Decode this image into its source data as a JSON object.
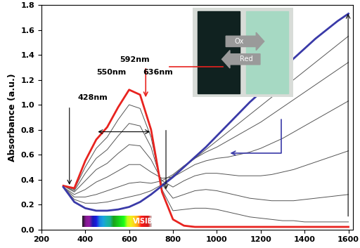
{
  "chart_data": {
    "type": "line",
    "y_label": "Absorbance (a.u.)",
    "x": [
      300,
      350,
      400,
      450,
      500,
      550,
      600,
      650,
      700,
      750,
      800,
      850,
      900,
      950,
      1000,
      1050,
      1100,
      1150,
      1200,
      1250,
      1300,
      1350,
      1400,
      1450,
      1500,
      1550,
      1600
    ],
    "series": [
      {
        "color": "#e8231f",
        "values": [
          0.35,
          0.33,
          0.55,
          0.72,
          0.82,
          0.98,
          1.12,
          1.08,
          0.8,
          0.3,
          0.08,
          0.03,
          0.02,
          0.02,
          0.02,
          0.02,
          0.02,
          0.02,
          0.02,
          0.02,
          0.02,
          0.02,
          0.02,
          0.02,
          0.02,
          0.02,
          0.02
        ]
      },
      {
        "color": "#555555",
        "values": [
          0.35,
          0.32,
          0.5,
          0.65,
          0.74,
          0.88,
          1.0,
          0.97,
          0.74,
          0.32,
          0.15,
          0.16,
          0.17,
          0.17,
          0.16,
          0.14,
          0.12,
          0.1,
          0.09,
          0.08,
          0.07,
          0.07,
          0.06,
          0.06,
          0.06,
          0.06,
          0.06
        ]
      },
      {
        "color": "#555555",
        "values": [
          0.35,
          0.31,
          0.45,
          0.57,
          0.64,
          0.75,
          0.85,
          0.83,
          0.66,
          0.36,
          0.25,
          0.28,
          0.31,
          0.32,
          0.31,
          0.29,
          0.27,
          0.25,
          0.24,
          0.23,
          0.23,
          0.23,
          0.24,
          0.25,
          0.26,
          0.27,
          0.28
        ]
      },
      {
        "color": "#555555",
        "values": [
          0.35,
          0.3,
          0.39,
          0.48,
          0.53,
          0.61,
          0.68,
          0.67,
          0.56,
          0.39,
          0.34,
          0.39,
          0.43,
          0.45,
          0.45,
          0.44,
          0.43,
          0.43,
          0.43,
          0.44,
          0.46,
          0.48,
          0.51,
          0.54,
          0.57,
          0.6,
          0.63
        ]
      },
      {
        "color": "#555555",
        "values": [
          0.34,
          0.28,
          0.32,
          0.38,
          0.42,
          0.47,
          0.52,
          0.52,
          0.46,
          0.41,
          0.42,
          0.47,
          0.52,
          0.55,
          0.57,
          0.58,
          0.6,
          0.62,
          0.65,
          0.69,
          0.73,
          0.78,
          0.83,
          0.88,
          0.93,
          0.98,
          1.03
        ]
      },
      {
        "color": "#555555",
        "values": [
          0.34,
          0.26,
          0.26,
          0.28,
          0.31,
          0.34,
          0.37,
          0.38,
          0.37,
          0.39,
          0.44,
          0.51,
          0.57,
          0.62,
          0.66,
          0.71,
          0.76,
          0.81,
          0.86,
          0.92,
          0.98,
          1.04,
          1.1,
          1.16,
          1.22,
          1.28,
          1.34
        ]
      },
      {
        "color": "#555555",
        "values": [
          0.34,
          0.24,
          0.21,
          0.21,
          0.22,
          0.24,
          0.26,
          0.28,
          0.31,
          0.36,
          0.43,
          0.5,
          0.57,
          0.64,
          0.71,
          0.78,
          0.85,
          0.92,
          0.99,
          1.06,
          1.13,
          1.2,
          1.27,
          1.34,
          1.41,
          1.48,
          1.55
        ]
      },
      {
        "color": "#3a3aa8",
        "values": [
          0.34,
          0.22,
          0.17,
          0.15,
          0.15,
          0.16,
          0.18,
          0.22,
          0.28,
          0.35,
          0.42,
          0.5,
          0.58,
          0.66,
          0.75,
          0.84,
          0.93,
          1.02,
          1.1,
          1.19,
          1.28,
          1.37,
          1.45,
          1.53,
          1.6,
          1.67,
          1.73
        ]
      }
    ],
    "xlim": [
      200,
      1620
    ],
    "xticks": [
      200,
      400,
      600,
      800,
      1000,
      1200,
      1400,
      1600
    ],
    "ylim": [
      0,
      1.8
    ],
    "yticks": [
      {
        "value": 0,
        "label": "0.0"
      },
      {
        "value": 0.2,
        "label": "0.2"
      },
      {
        "value": 0.4,
        "label": "0.4"
      },
      {
        "value": 0.6,
        "label": "0.6"
      },
      {
        "value": 0.8,
        "label": "0.8"
      },
      {
        "value": 1.0,
        "label": "1.0"
      },
      {
        "value": 1.2,
        "label": "1.2"
      },
      {
        "value": 1.4,
        "label": "1.4"
      },
      {
        "value": 1.6,
        "label": "1.6"
      },
      {
        "value": 1.8,
        "label": "1.8"
      }
    ],
    "peak_labels": [
      "428nm",
      "550nm",
      "592nm",
      "636nm"
    ],
    "band_label": "VISIBLE",
    "inset_labels": [
      "Ox",
      "Red"
    ]
  }
}
